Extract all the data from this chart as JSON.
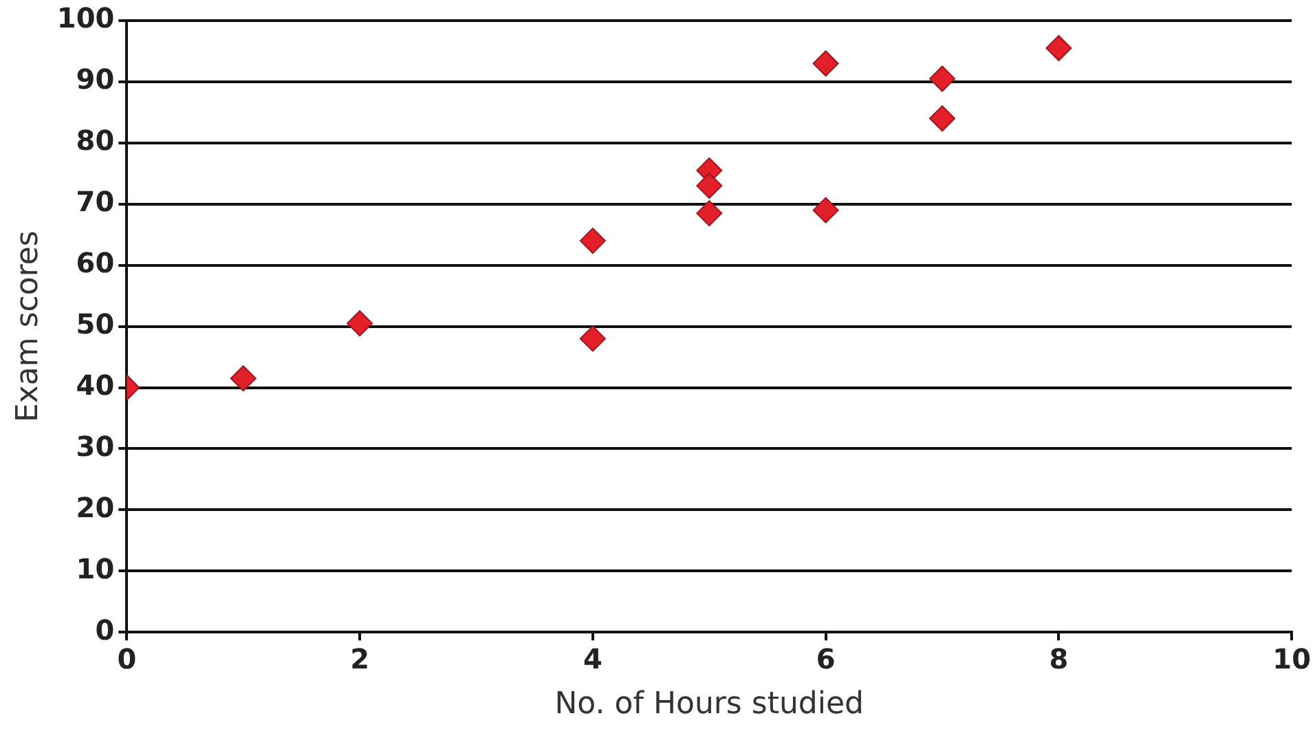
{
  "chart_data": {
    "type": "scatter",
    "xlabel": "No. of Hours studied",
    "ylabel": "Exam scores",
    "x": [
      0,
      1,
      2,
      4,
      4,
      5,
      5,
      5,
      6,
      6,
      7,
      7,
      8
    ],
    "series": [
      {
        "color": "#e3202a",
        "values": [
          40,
          41.5,
          50.5,
          64,
          48,
          75.5,
          73,
          68.5,
          93,
          69,
          90.5,
          84,
          95.5
        ]
      }
    ],
    "xlim": [
      0,
      10
    ],
    "xticks": [
      0,
      2,
      4,
      6,
      8,
      10
    ],
    "ylim": [
      0,
      100
    ],
    "yticks": [
      0,
      10,
      20,
      30,
      40,
      50,
      60,
      70,
      80,
      90,
      100
    ],
    "grid": "y",
    "legend": false,
    "marker": "diamond"
  }
}
